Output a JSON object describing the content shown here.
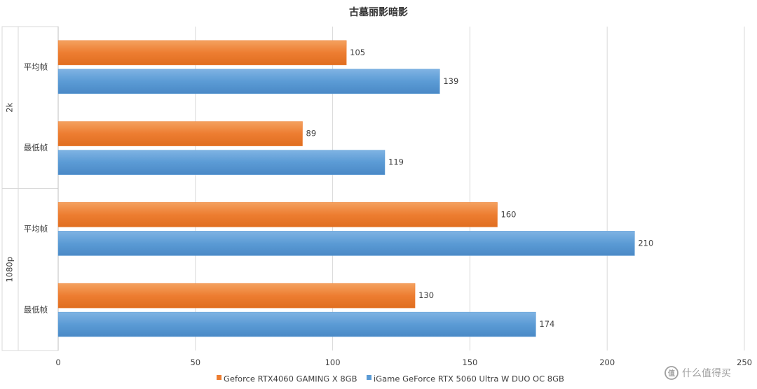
{
  "chart_data": {
    "type": "bar",
    "orientation": "horizontal",
    "title": "古墓丽影暗影",
    "groups": [
      {
        "label": "2k",
        "categories": [
          "平均帧",
          "最低帧"
        ]
      },
      {
        "label": "1080p",
        "categories": [
          "平均帧",
          "最低帧"
        ]
      }
    ],
    "series": [
      {
        "name": "Geforce RTX4060 GAMING X 8GB",
        "color": "#ED7D31",
        "values": [
          105,
          89,
          160,
          130
        ]
      },
      {
        "name": "iGame GeForce RTX 5060 Ultra W DUO OC 8GB",
        "color": "#5B9BD5",
        "values": [
          139,
          119,
          210,
          174
        ]
      }
    ],
    "xlim": [
      0,
      250
    ],
    "x_ticks": [
      0,
      50,
      100,
      150,
      200,
      250
    ],
    "grid": true,
    "legend_position": "bottom"
  },
  "watermark": {
    "text": "什么值得买",
    "icon": "smzdm-logo-icon"
  }
}
